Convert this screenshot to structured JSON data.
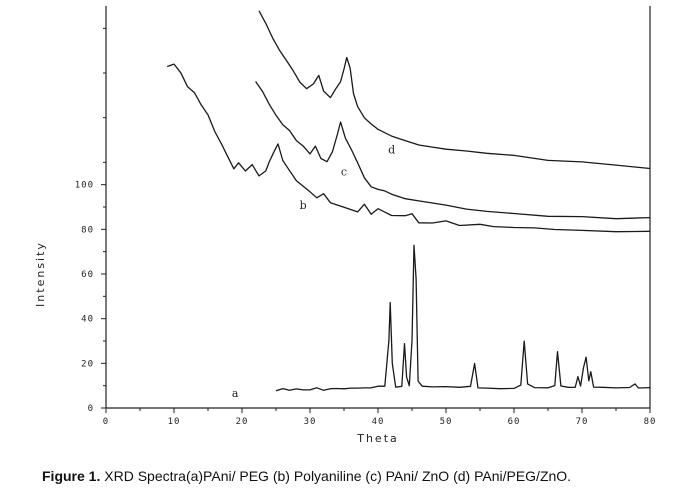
{
  "caption": {
    "label": "Figure 1.",
    "text": " XRD Spectra(a)PAni/ PEG (b) Polyaniline (c) PAni/ ZnO (d) PAni/PEG/ZnO."
  },
  "chart_data": {
    "type": "line",
    "title": "",
    "xlabel": "Theta",
    "ylabel": "Intensity",
    "xlim": [
      0,
      80
    ],
    "ylim": [
      0,
      180
    ],
    "x_ticks": [
      0,
      10,
      20,
      30,
      40,
      50,
      60,
      70,
      80
    ],
    "y_ticks": [
      0,
      20,
      40,
      60,
      80,
      100
    ],
    "grid": false,
    "legend": "none",
    "colors": {
      "line": "#1a1a1a",
      "axis": "#222222"
    },
    "series": [
      {
        "name": "a",
        "label_at": [
          19,
          5
        ],
        "points": [
          [
            25,
            8
          ],
          [
            26,
            8.5
          ],
          [
            27,
            8
          ],
          [
            28,
            8.6
          ],
          [
            29,
            8
          ],
          [
            30,
            8.3
          ],
          [
            31,
            8.8
          ],
          [
            32,
            8.2
          ],
          [
            33,
            8.4
          ],
          [
            34,
            8.9
          ],
          [
            35,
            8.5
          ],
          [
            36,
            8.9
          ],
          [
            37,
            9
          ],
          [
            38,
            8.8
          ],
          [
            39,
            9.3
          ],
          [
            40,
            9.5
          ],
          [
            41,
            10
          ],
          [
            41.6,
            30
          ],
          [
            41.8,
            47
          ],
          [
            42.1,
            20
          ],
          [
            42.6,
            9.5
          ],
          [
            43.5,
            9.5
          ],
          [
            43.9,
            29
          ],
          [
            44.2,
            14
          ],
          [
            44.6,
            9.8
          ],
          [
            45,
            30
          ],
          [
            45.3,
            73
          ],
          [
            45.6,
            58
          ],
          [
            45.9,
            12
          ],
          [
            46.5,
            9.6
          ],
          [
            48,
            9.2
          ],
          [
            50,
            9.3
          ],
          [
            52,
            9
          ],
          [
            53.6,
            9.5
          ],
          [
            54.2,
            20
          ],
          [
            54.7,
            9.2
          ],
          [
            56,
            9
          ],
          [
            58,
            8.8
          ],
          [
            60,
            9
          ],
          [
            61,
            10
          ],
          [
            61.5,
            30
          ],
          [
            62,
            11
          ],
          [
            63,
            9
          ],
          [
            65,
            9
          ],
          [
            66,
            10
          ],
          [
            66.4,
            25
          ],
          [
            66.9,
            10
          ],
          [
            68,
            9
          ],
          [
            69,
            9.5
          ],
          [
            69.4,
            14
          ],
          [
            69.8,
            9.6
          ],
          [
            70.2,
            18
          ],
          [
            70.6,
            23
          ],
          [
            71,
            12
          ],
          [
            71.3,
            16
          ],
          [
            71.7,
            9.5
          ],
          [
            73,
            9
          ],
          [
            75,
            8.8
          ],
          [
            77,
            9
          ],
          [
            77.8,
            11
          ],
          [
            78.3,
            8.7
          ],
          [
            80,
            9
          ]
        ]
      },
      {
        "name": "b",
        "label_at": [
          29,
          89
        ],
        "points": [
          [
            9,
            153
          ],
          [
            10,
            154
          ],
          [
            11,
            150
          ],
          [
            12,
            144
          ],
          [
            13,
            141
          ],
          [
            14,
            136
          ],
          [
            15,
            131
          ],
          [
            16,
            124
          ],
          [
            17,
            118
          ],
          [
            18,
            112
          ],
          [
            18.8,
            107
          ],
          [
            19.5,
            110
          ],
          [
            20.5,
            106
          ],
          [
            21.5,
            109
          ],
          [
            22.5,
            104
          ],
          [
            23.5,
            106
          ],
          [
            24,
            110
          ],
          [
            24.7,
            115
          ],
          [
            25.3,
            118
          ],
          [
            26,
            111
          ],
          [
            27,
            106
          ],
          [
            28,
            102
          ],
          [
            29,
            99
          ],
          [
            30,
            97
          ],
          [
            31,
            94
          ],
          [
            32,
            96
          ],
          [
            33,
            92
          ],
          [
            35,
            90
          ],
          [
            37,
            88
          ],
          [
            38,
            91
          ],
          [
            39,
            87
          ],
          [
            40,
            89
          ],
          [
            42,
            86
          ],
          [
            44,
            86
          ],
          [
            45,
            87
          ],
          [
            46,
            83
          ],
          [
            48,
            83
          ],
          [
            50,
            84
          ],
          [
            52,
            82
          ],
          [
            55,
            82
          ],
          [
            57,
            81
          ],
          [
            60,
            81
          ],
          [
            63,
            80.5
          ],
          [
            66,
            80
          ],
          [
            70,
            79.5
          ],
          [
            75,
            79
          ],
          [
            80,
            79
          ]
        ]
      },
      {
        "name": "c",
        "label_at": [
          35,
          104
        ],
        "points": [
          [
            22,
            146
          ],
          [
            23,
            142
          ],
          [
            24,
            136
          ],
          [
            25,
            131
          ],
          [
            26,
            127
          ],
          [
            27,
            124
          ],
          [
            28,
            120
          ],
          [
            29,
            117
          ],
          [
            30,
            114
          ],
          [
            30.8,
            117
          ],
          [
            31.6,
            112
          ],
          [
            32.5,
            110
          ],
          [
            33.3,
            115
          ],
          [
            34,
            122
          ],
          [
            34.5,
            128
          ],
          [
            35.2,
            121
          ],
          [
            36,
            116
          ],
          [
            37,
            110
          ],
          [
            38,
            103
          ],
          [
            39,
            99
          ],
          [
            40,
            98
          ],
          [
            41,
            97
          ],
          [
            42,
            96
          ],
          [
            44,
            94
          ],
          [
            46,
            93
          ],
          [
            48,
            92
          ],
          [
            50,
            91
          ],
          [
            53,
            89
          ],
          [
            56,
            88
          ],
          [
            60,
            87
          ],
          [
            65,
            86
          ],
          [
            70,
            85.5
          ],
          [
            75,
            85
          ],
          [
            80,
            85
          ]
        ]
      },
      {
        "name": "d",
        "label_at": [
          42,
          114
        ],
        "points": [
          [
            22.5,
            178
          ],
          [
            23.5,
            172
          ],
          [
            24.5,
            166
          ],
          [
            25.5,
            160
          ],
          [
            26.5,
            156
          ],
          [
            27.5,
            151
          ],
          [
            28.5,
            146
          ],
          [
            29.5,
            143
          ],
          [
            30.5,
            145
          ],
          [
            31.3,
            149
          ],
          [
            32,
            142
          ],
          [
            33,
            139
          ],
          [
            33.8,
            143
          ],
          [
            34.5,
            146
          ],
          [
            35,
            152
          ],
          [
            35.4,
            157
          ],
          [
            35.9,
            152
          ],
          [
            36.4,
            141
          ],
          [
            37,
            135
          ],
          [
            38,
            130
          ],
          [
            39,
            127
          ],
          [
            40,
            125
          ],
          [
            42,
            122
          ],
          [
            44,
            120
          ],
          [
            46,
            118
          ],
          [
            48,
            117
          ],
          [
            50,
            116
          ],
          [
            53,
            115
          ],
          [
            56,
            114
          ],
          [
            60,
            113
          ],
          [
            65,
            111
          ],
          [
            70,
            110
          ],
          [
            75,
            109
          ],
          [
            80,
            107
          ]
        ]
      }
    ]
  }
}
